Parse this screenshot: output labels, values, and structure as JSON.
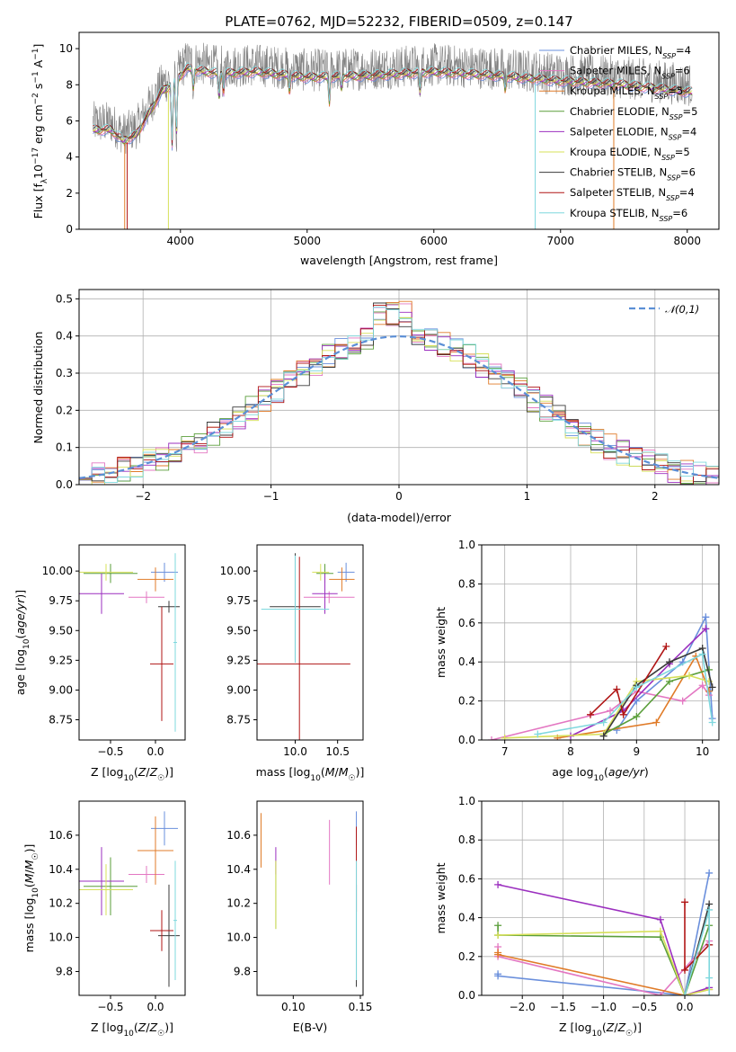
{
  "colors": {
    "Chabrier MILES": "#6a8fdc",
    "Salpeter MILES": "#e377c2",
    "Kroupa MILES": "#e07b28",
    "Chabrier ELODIE": "#5a9e3a",
    "Salpeter ELODIE": "#9b2fbf",
    "Kroupa ELODIE": "#d7e05a",
    "Chabrier STELIB": "#3a3a3a",
    "Salpeter STELIB": "#b01515",
    "Kroupa STELIB": "#7fd8de",
    "data": "#808080"
  },
  "chart_data": [
    {
      "id": "spectrum",
      "type": "line",
      "title": "PLATE=0762, MJD=52232, FIBERID=0509, z=0.147",
      "xlabel": "wavelength [Angstrom, rest frame]",
      "ylabel": "Flux [f_λ10^-17 erg cm^-2 s^-1 A^-1]",
      "xlim": [
        3200,
        8250
      ],
      "ylim": [
        0,
        10.9
      ],
      "xticks": [
        4000,
        5000,
        6000,
        7000,
        8000
      ],
      "yticks": [
        0,
        2,
        4,
        6,
        8,
        10
      ],
      "legend_position": "top-right",
      "legend": [
        {
          "name": "Chabrier MILES",
          "nssp": "4"
        },
        {
          "name": "Salpeter MILES",
          "nssp": "6"
        },
        {
          "name": "Kroupa MILES",
          "nssp": "5"
        },
        {
          "name": "Chabrier ELODIE",
          "nssp": "5"
        },
        {
          "name": "Salpeter ELODIE",
          "nssp": "4"
        },
        {
          "name": "Kroupa ELODIE",
          "nssp": "5"
        },
        {
          "name": "Chabrier STELIB",
          "nssp": "6"
        },
        {
          "name": "Salpeter STELIB",
          "nssp": "4"
        },
        {
          "name": "Kroupa STELIB",
          "nssp": "6"
        }
      ],
      "continuum": {
        "x": [
          3300,
          3450,
          3550,
          3650,
          3750,
          3850,
          3950,
          4050,
          4300,
          4600,
          5000,
          5500,
          6000,
          6500,
          7000,
          7500,
          8000
        ],
        "y": [
          5.9,
          5.9,
          5.3,
          5.6,
          6.8,
          8.0,
          8.5,
          9.3,
          9.0,
          9.1,
          8.8,
          8.9,
          9.1,
          8.9,
          8.6,
          8.4,
          8.0
        ]
      }
    },
    {
      "id": "residuals",
      "type": "step",
      "xlabel": "(data-model)/error",
      "ylabel": "Normed distribution",
      "xlim": [
        -2.5,
        2.5
      ],
      "ylim": [
        0,
        0.525
      ],
      "xticks": [
        -2,
        -1,
        0,
        1,
        2
      ],
      "yticks": [
        0.0,
        0.1,
        0.2,
        0.3,
        0.4,
        0.5
      ],
      "reference_curve": "𝒩(0,1)",
      "reference_color": "#5b8fd6",
      "grid": true,
      "legend_position": "top-right"
    },
    {
      "id": "age-vs-Z",
      "type": "errorbar",
      "xlabel": "Z [log10(Z/Z☉)]",
      "ylabel": "age [log10(age/yr)]",
      "xlim": [
        -0.85,
        0.33
      ],
      "ylim": [
        8.58,
        10.22
      ],
      "xticks": [
        -0.5,
        0.0
      ],
      "yticks": [
        8.75,
        9.0,
        9.25,
        9.5,
        9.75,
        10.0
      ],
      "points": [
        {
          "model": "Chabrier MILES",
          "x": 0.1,
          "xerr": 0.15,
          "y": 9.99,
          "yerr": 0.08
        },
        {
          "model": "Salpeter MILES",
          "x": -0.1,
          "xerr": 0.2,
          "y": 9.78,
          "yerr": 0.05
        },
        {
          "model": "Kroupa MILES",
          "x": 0.0,
          "xerr": 0.2,
          "y": 9.93,
          "yerr": 0.1
        },
        {
          "model": "Chabrier ELODIE",
          "x": -0.5,
          "xerr": 0.3,
          "y": 9.98,
          "yerr": 0.08
        },
        {
          "model": "Salpeter ELODIE",
          "x": -0.6,
          "xerr": 0.25,
          "y": 9.81,
          "yerr": 0.17
        },
        {
          "model": "Kroupa ELODIE",
          "x": -0.55,
          "xerr": 0.3,
          "y": 9.99,
          "yerr": 0.07
        },
        {
          "model": "Chabrier STELIB",
          "x": 0.15,
          "xerr": 0.12,
          "y": 9.7,
          "yerr": 0.05
        },
        {
          "model": "Salpeter STELIB",
          "x": 0.07,
          "xerr": 0.13,
          "y": 9.22,
          "yerr": 0.48
        },
        {
          "model": "Kroupa STELIB",
          "x": 0.22,
          "xerr": 0.02,
          "y": 9.4,
          "yerr": 0.75
        }
      ]
    },
    {
      "id": "age-vs-mass",
      "type": "errorbar",
      "xlabel": "mass [log10(M/M☉)]",
      "ylabel": "",
      "xlim": [
        9.55,
        10.8
      ],
      "ylim": [
        8.58,
        10.22
      ],
      "xticks": [
        10.0,
        10.5
      ],
      "yticks": [
        8.75,
        9.0,
        9.25,
        9.5,
        9.75,
        10.0
      ],
      "points": [
        {
          "model": "Chabrier MILES",
          "x": 10.6,
          "xerr": 0.1,
          "y": 9.99,
          "yerr": 0.08
        },
        {
          "model": "Salpeter MILES",
          "x": 10.4,
          "xerr": 0.3,
          "y": 9.78,
          "yerr": 0.05
        },
        {
          "model": "Kroupa MILES",
          "x": 10.55,
          "xerr": 0.15,
          "y": 9.93,
          "yerr": 0.1
        },
        {
          "model": "Chabrier ELODIE",
          "x": 10.35,
          "xerr": 0.1,
          "y": 9.98,
          "yerr": 0.08
        },
        {
          "model": "Salpeter ELODIE",
          "x": 10.35,
          "xerr": 0.15,
          "y": 9.81,
          "yerr": 0.17
        },
        {
          "model": "Kroupa ELODIE",
          "x": 10.3,
          "xerr": 0.1,
          "y": 9.99,
          "yerr": 0.07
        },
        {
          "model": "Chabrier STELIB",
          "x": 10.0,
          "xerr": 0.3,
          "y": 9.7,
          "yerr": 0.45
        },
        {
          "model": "Salpeter STELIB",
          "x": 10.05,
          "xerr": 0.6,
          "y": 9.22,
          "yerr": 0.9
        },
        {
          "model": "Kroupa STELIB",
          "x": 10.0,
          "xerr": 0.4,
          "y": 9.68,
          "yerr": 0.45
        }
      ]
    },
    {
      "id": "mass-weight-vs-age",
      "type": "line",
      "xlabel": "age log10(age/yr)",
      "ylabel": "mass weight",
      "xlim": [
        6.65,
        10.25
      ],
      "ylim": [
        0,
        1.0
      ],
      "xticks": [
        7,
        8,
        9,
        10
      ],
      "yticks": [
        0.0,
        0.2,
        0.4,
        0.6,
        0.8,
        1.0
      ],
      "grid": true,
      "series": [
        {
          "model": "Chabrier MILES",
          "x": [
            8.7,
            9.0,
            9.7,
            10.05,
            10.15
          ],
          "y": [
            0.05,
            0.2,
            0.4,
            0.63,
            0.11
          ]
        },
        {
          "model": "Salpeter MILES",
          "x": [
            6.8,
            8.6,
            9.0,
            9.7,
            10.0,
            10.1
          ],
          "y": [
            0.0,
            0.15,
            0.25,
            0.2,
            0.28,
            0.23
          ]
        },
        {
          "model": "Kroupa MILES",
          "x": [
            7.8,
            9.3,
            9.9,
            10.1
          ],
          "y": [
            0.01,
            0.09,
            0.43,
            0.25
          ]
        },
        {
          "model": "Chabrier ELODIE",
          "x": [
            8.5,
            9.0,
            9.5,
            10.1
          ],
          "y": [
            0.03,
            0.12,
            0.3,
            0.36
          ]
        },
        {
          "model": "Salpeter ELODIE",
          "x": [
            8.0,
            8.8,
            9.5,
            10.05
          ],
          "y": [
            0.02,
            0.15,
            0.39,
            0.57
          ]
        },
        {
          "model": "Kroupa ELODIE",
          "x": [
            7.0,
            8.5,
            9.0,
            9.8,
            10.1
          ],
          "y": [
            0.01,
            0.03,
            0.3,
            0.33,
            0.3
          ]
        },
        {
          "model": "Chabrier STELIB",
          "x": [
            8.5,
            9.0,
            9.5,
            10.0,
            10.15
          ],
          "y": [
            0.02,
            0.28,
            0.4,
            0.47,
            0.27
          ]
        },
        {
          "model": "Salpeter STELIB",
          "x": [
            8.3,
            8.7,
            8.8,
            9.45
          ],
          "y": [
            0.13,
            0.26,
            0.13,
            0.48
          ]
        },
        {
          "model": "Kroupa STELIB",
          "x": [
            7.5,
            8.5,
            9.0,
            10.0,
            10.15
          ],
          "y": [
            0.03,
            0.09,
            0.27,
            0.44,
            0.09
          ]
        }
      ]
    },
    {
      "id": "mass-vs-Z",
      "type": "errorbar",
      "xlabel": "Z [log10(Z/Z☉)]",
      "ylabel": "mass [log10(M/M☉)]",
      "xlim": [
        -0.85,
        0.33
      ],
      "ylim": [
        9.66,
        10.8
      ],
      "xticks": [
        -0.5,
        0.0
      ],
      "yticks": [
        9.8,
        10.0,
        10.2,
        10.4,
        10.6
      ],
      "points": [
        {
          "model": "Chabrier MILES",
          "x": 0.1,
          "xerr": 0.15,
          "y": 10.64,
          "yerr": 0.1
        },
        {
          "model": "Salpeter MILES",
          "x": -0.1,
          "xerr": 0.2,
          "y": 10.37,
          "yerr": 0.05
        },
        {
          "model": "Kroupa MILES",
          "x": 0.0,
          "xerr": 0.2,
          "y": 10.51,
          "yerr": 0.2
        },
        {
          "model": "Chabrier ELODIE",
          "x": -0.5,
          "xerr": 0.3,
          "y": 10.3,
          "yerr": 0.17
        },
        {
          "model": "Salpeter ELODIE",
          "x": -0.6,
          "xerr": 0.25,
          "y": 10.33,
          "yerr": 0.2
        },
        {
          "model": "Kroupa ELODIE",
          "x": -0.55,
          "xerr": 0.3,
          "y": 10.28,
          "yerr": 0.15
        },
        {
          "model": "Chabrier STELIB",
          "x": 0.15,
          "xerr": 0.12,
          "y": 10.01,
          "yerr": 0.3
        },
        {
          "model": "Salpeter STELIB",
          "x": 0.07,
          "xerr": 0.13,
          "y": 10.04,
          "yerr": 0.12
        },
        {
          "model": "Kroupa STELIB",
          "x": 0.22,
          "xerr": 0.02,
          "y": 10.1,
          "yerr": 0.35
        }
      ]
    },
    {
      "id": "mass-vs-EBV",
      "type": "errorbar",
      "xlabel": "E(B-V)",
      "ylabel": "",
      "xlim": [
        0.073,
        0.152
      ],
      "ylim": [
        9.66,
        10.8
      ],
      "xticks": [
        0.1,
        0.15
      ],
      "tick_labels": [
        "0.10",
        "0.15"
      ],
      "yticks": [
        9.8,
        10.0,
        10.2,
        10.4,
        10.6
      ],
      "points": [
        {
          "model": "Chabrier MILES",
          "x": 0.147,
          "xerr": 0,
          "y": 10.64,
          "yerr": 0.1
        },
        {
          "model": "Salpeter MILES",
          "x": 0.127,
          "xerr": 0,
          "y": 10.5,
          "yerr": 0.19
        },
        {
          "model": "Kroupa MILES",
          "x": 0.076,
          "xerr": 0,
          "y": 10.57,
          "yerr": 0.16
        },
        {
          "model": "Chabrier ELODIE",
          "x": 0.087,
          "xerr": 0,
          "y": 10.25,
          "yerr": 0.2
        },
        {
          "model": "Salpeter ELODIE",
          "x": 0.087,
          "xerr": 0,
          "y": 10.45,
          "yerr": 0.08
        },
        {
          "model": "Kroupa ELODIE",
          "x": 0.087,
          "xerr": 0,
          "y": 10.25,
          "yerr": 0.2
        },
        {
          "model": "Chabrier STELIB",
          "x": 0.147,
          "xerr": 0,
          "y": 10.01,
          "yerr": 0.3
        },
        {
          "model": "Salpeter STELIB",
          "x": 0.147,
          "xerr": 0,
          "y": 10.4,
          "yerr": 0.25
        },
        {
          "model": "Kroupa STELIB",
          "x": 0.147,
          "xerr": 0,
          "y": 10.1,
          "yerr": 0.35
        }
      ]
    },
    {
      "id": "mass-weight-vs-Z",
      "type": "line",
      "xlabel": "Z [log10(Z/Z☉)]",
      "ylabel": "mass weight",
      "xlim": [
        -2.5,
        0.42
      ],
      "ylim": [
        0,
        1.0
      ],
      "xticks": [
        -2.0,
        -1.5,
        -1.0,
        -0.5,
        0.0
      ],
      "yticks": [
        0.0,
        0.2,
        0.4,
        0.6,
        0.8,
        1.0
      ],
      "grid": true,
      "series": [
        {
          "model": "Chabrier MILES",
          "x": [
            -2.3,
            -2.3,
            0.0,
            0.3
          ],
          "y": [
            0.11,
            0.1,
            0.0,
            0.63
          ]
        },
        {
          "model": "Salpeter MILES",
          "x": [
            -2.3,
            -2.3,
            -0.3,
            0.3
          ],
          "y": [
            0.25,
            0.2,
            0.0,
            0.28
          ]
        },
        {
          "model": "Kroupa MILES",
          "x": [
            -2.3,
            -2.3,
            0.0,
            0.3
          ],
          "y": [
            0.22,
            0.21,
            0.0,
            0.03
          ]
        },
        {
          "model": "Chabrier ELODIE",
          "x": [
            -2.3,
            -2.3,
            -0.3,
            0.0,
            0.3
          ],
          "y": [
            0.36,
            0.31,
            0.3,
            0.0,
            0.36
          ]
        },
        {
          "model": "Salpeter ELODIE",
          "x": [
            -2.3,
            -0.3,
            0.0,
            0.3
          ],
          "y": [
            0.57,
            0.39,
            0.0,
            0.04
          ]
        },
        {
          "model": "Kroupa ELODIE",
          "x": [
            -2.3,
            -0.3,
            0.0,
            0.3
          ],
          "y": [
            0.31,
            0.33,
            0.0,
            0.03
          ]
        },
        {
          "model": "Chabrier STELIB",
          "x": [
            0.0,
            0.3,
            0.3
          ],
          "y": [
            0.0,
            0.47,
            0.26
          ]
        },
        {
          "model": "Salpeter STELIB",
          "x": [
            0.0,
            0.0,
            0.3
          ],
          "y": [
            0.48,
            0.13,
            0.26
          ]
        },
        {
          "model": "Kroupa STELIB",
          "x": [
            0.0,
            0.3,
            0.3,
            0.3
          ],
          "y": [
            0.0,
            0.44,
            0.09,
            0.0
          ]
        }
      ]
    }
  ]
}
